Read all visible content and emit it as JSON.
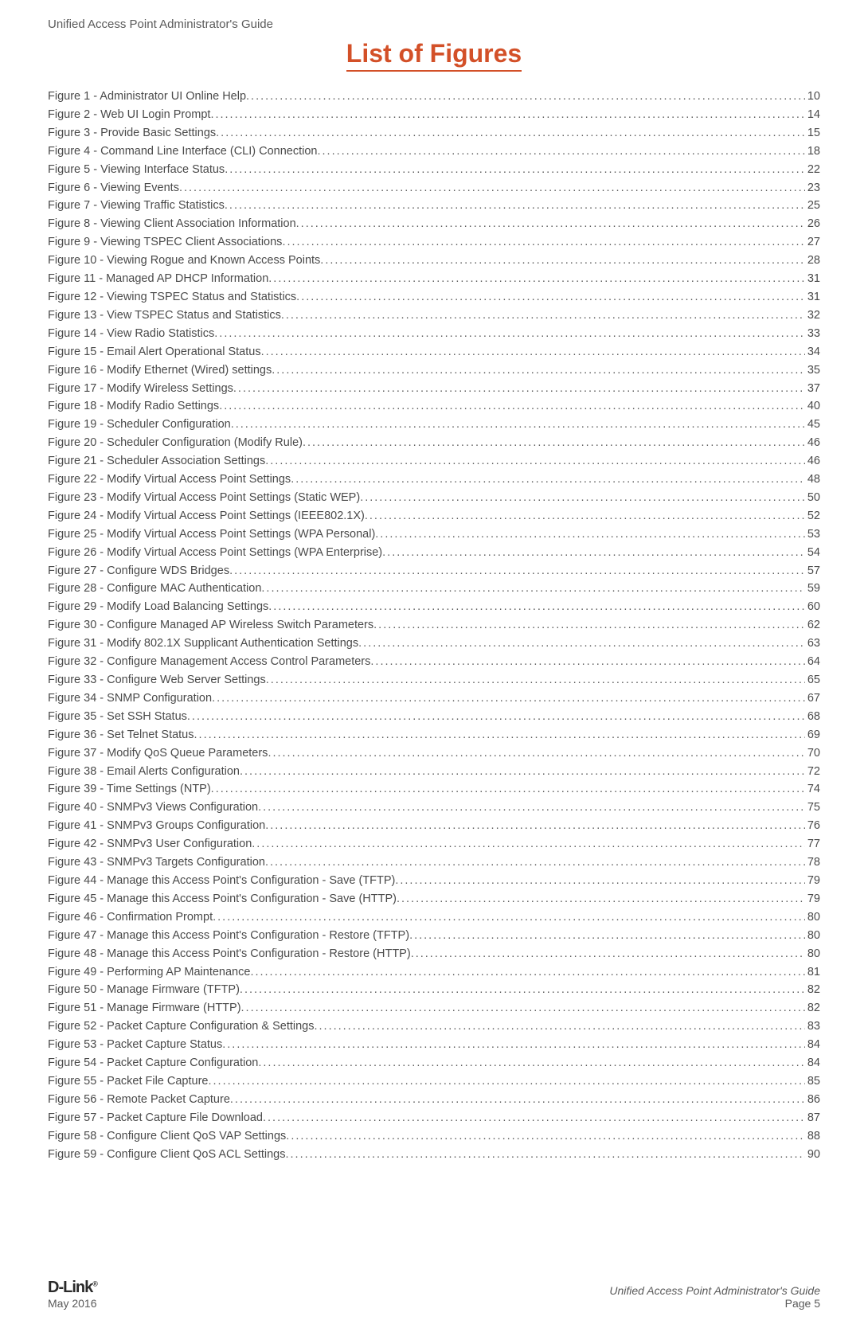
{
  "header": "Unified Access Point Administrator's Guide",
  "title": "List of Figures",
  "entries": [
    {
      "label": "Figure 1 - Administrator UI Online Help",
      "page": "10"
    },
    {
      "label": "Figure 2 - Web UI Login Prompt",
      "page": "14"
    },
    {
      "label": "Figure 3 - Provide Basic Settings",
      "page": "15"
    },
    {
      "label": "Figure 4 - Command Line Interface (CLI) Connection ",
      "page": "18"
    },
    {
      "label": "Figure 5 - Viewing Interface Status ",
      "page": "22"
    },
    {
      "label": "Figure 6 - Viewing Events",
      "page": "23"
    },
    {
      "label": "Figure 7 - Viewing Traffic Statistics ",
      "page": "25"
    },
    {
      "label": "Figure 8 - Viewing Client Association Information ",
      "page": "26"
    },
    {
      "label": "Figure 9 - Viewing TSPEC Client Associations ",
      "page": "27"
    },
    {
      "label": "Figure 10 - Viewing Rogue and Known Access Points",
      "page": "28"
    },
    {
      "label": "Figure 11 - Managed AP DHCP Information",
      "page": "31"
    },
    {
      "label": "Figure 12 - Viewing TSPEC Status and Statistics",
      "page": "31"
    },
    {
      "label": "Figure 13 - View TSPEC Status and Statistics",
      "page": "32"
    },
    {
      "label": "Figure 14 - View Radio Statistics",
      "page": "33"
    },
    {
      "label": "Figure 15 - Email Alert Operational Status",
      "page": "34"
    },
    {
      "label": "Figure 16 - Modify Ethernet (Wired) settings",
      "page": "35"
    },
    {
      "label": "Figure 17 - Modify Wireless Settings",
      "page": "37"
    },
    {
      "label": "Figure 18 - Modify Radio Settings",
      "page": "40"
    },
    {
      "label": "Figure 19 - Scheduler Configuration ",
      "page": "45"
    },
    {
      "label": "Figure 20 - Scheduler Configuration (Modify Rule)",
      "page": "46"
    },
    {
      "label": "Figure 21 - Scheduler Association Settings",
      "page": "46"
    },
    {
      "label": "Figure 22 - Modify Virtual Access Point Settings",
      "page": "48"
    },
    {
      "label": "Figure 23 - Modify Virtual Access Point Settings (Static WEP) ",
      "page": "50"
    },
    {
      "label": "Figure 24 - Modify Virtual Access Point Settings (IEEE802.1X)",
      "page": "52"
    },
    {
      "label": "Figure 25 - Modify Virtual Access Point Settings (WPA Personal) ",
      "page": "53"
    },
    {
      "label": "Figure 26 - Modify Virtual Access Point Settings (WPA Enterprise) ",
      "page": "54"
    },
    {
      "label": "Figure 27 - Configure WDS Bridges",
      "page": "57"
    },
    {
      "label": "Figure 28 - Configure MAC Authentication",
      "page": "59"
    },
    {
      "label": "Figure 29 - Modify Load Balancing Settings",
      "page": "60"
    },
    {
      "label": "Figure 30 - Configure Managed AP Wireless Switch Parameters",
      "page": "62"
    },
    {
      "label": "Figure 31 - Modify 802.1X Supplicant Authentication Settings",
      "page": "63"
    },
    {
      "label": "Figure 32 - Configure Management Access Control Parameters",
      "page": "64"
    },
    {
      "label": "Figure 33 - Configure Web Server Settings",
      "page": "65"
    },
    {
      "label": "Figure 34 - SNMP Configuration ",
      "page": "67"
    },
    {
      "label": "Figure 35 - Set SSH Status",
      "page": "68"
    },
    {
      "label": "Figure 36 - Set Telnet Status",
      "page": "69"
    },
    {
      "label": "Figure 37 - Modify QoS Queue Parameters",
      "page": "70"
    },
    {
      "label": "Figure 38 - Email Alerts Configuration",
      "page": "72"
    },
    {
      "label": "Figure 39 - Time Settings (NTP)",
      "page": "74"
    },
    {
      "label": "Figure 40 - SNMPv3 Views Configuration",
      "page": "75"
    },
    {
      "label": "Figure 41 - SNMPv3 Groups Configuration",
      "page": "76"
    },
    {
      "label": "Figure 42 - SNMPv3 User Configuration",
      "page": "77"
    },
    {
      "label": "Figure 43 - SNMPv3 Targets Configuration",
      "page": "78"
    },
    {
      "label": "Figure 44 - Manage this Access Point's Configuration - Save (TFTP)",
      "page": "79"
    },
    {
      "label": "Figure 45 - Manage this Access Point's Configuration - Save (HTTP)",
      "page": "79"
    },
    {
      "label": "Figure 46 - Confirmation Prompt",
      "page": "80"
    },
    {
      "label": "Figure 47 - Manage this Access Point's Configuration - Restore (TFTP)",
      "page": "80"
    },
    {
      "label": "Figure 48 - Manage this Access Point's Configuration - Restore (HTTP) ",
      "page": "80"
    },
    {
      "label": "Figure 49 - Performing AP Maintenance ",
      "page": "81"
    },
    {
      "label": "Figure 50 - Manage Firmware (TFTP)",
      "page": "82"
    },
    {
      "label": "Figure 51 - Manage Firmware (HTTP) ",
      "page": "82"
    },
    {
      "label": "Figure 52 - Packet Capture Configuration & Settings ",
      "page": "83"
    },
    {
      "label": "Figure 53 - Packet Capture Status",
      "page": "84"
    },
    {
      "label": "Figure 54 - Packet Capture Configuration",
      "page": "84"
    },
    {
      "label": "Figure 55 - Packet File Capture ",
      "page": "85"
    },
    {
      "label": "Figure 56 - Remote Packet Capture",
      "page": "86"
    },
    {
      "label": "Figure 57 - Packet Capture File Download ",
      "page": "87"
    },
    {
      "label": "Figure 58 - Configure Client QoS VAP Settings ",
      "page": "88"
    },
    {
      "label": "Figure 59 - Configure Client QoS ACL Settings ",
      "page": "90"
    }
  ],
  "footer": {
    "logo": "D-Link",
    "date": "May 2016",
    "guide": "Unified Access Point Administrator's Guide",
    "page": "Page 5"
  }
}
